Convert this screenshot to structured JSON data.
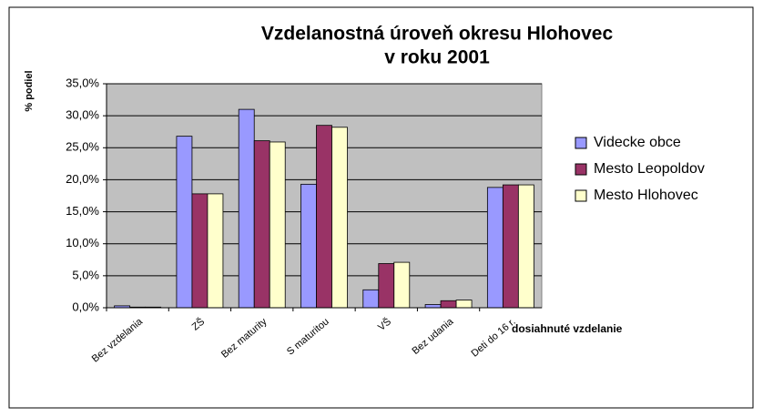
{
  "chart_data": {
    "type": "bar",
    "title": [
      "Vzdelanostná úroveň okresu Hlohovec",
      "v roku 2001"
    ],
    "y_label": "% podiel",
    "x_label": "dosiahnuté vzdelanie",
    "categories": [
      "Bez vzdelania",
      "ZŠ",
      "Bez maturity",
      "S maturitou",
      "VŠ",
      "Bez udania",
      "Deti do 16 r."
    ],
    "series": [
      {
        "name": "Videcke obce",
        "color": "#9999ff",
        "values": [
          0.3,
          26.8,
          31.0,
          19.3,
          2.8,
          0.5,
          18.8
        ]
      },
      {
        "name": "Mesto Leopoldov",
        "color": "#993366",
        "values": [
          0.1,
          17.8,
          26.1,
          28.5,
          6.9,
          1.1,
          19.2
        ]
      },
      {
        "name": "Mesto Hlohovec",
        "color": "#ffffcc",
        "values": [
          0.1,
          17.8,
          25.9,
          28.2,
          7.1,
          1.2,
          19.2
        ]
      }
    ],
    "ylim": [
      0,
      35
    ],
    "yticks": [
      {
        "value": 0,
        "label": "0,0%"
      },
      {
        "value": 5,
        "label": "5,0%"
      },
      {
        "value": 10,
        "label": "10,0%"
      },
      {
        "value": 15,
        "label": "15,0%"
      },
      {
        "value": 20,
        "label": "20,0%"
      },
      {
        "value": 25,
        "label": "25,0%"
      },
      {
        "value": 30,
        "label": "30,0%"
      },
      {
        "value": 35,
        "label": "35,0%"
      }
    ],
    "grid": true,
    "legend": "right"
  }
}
